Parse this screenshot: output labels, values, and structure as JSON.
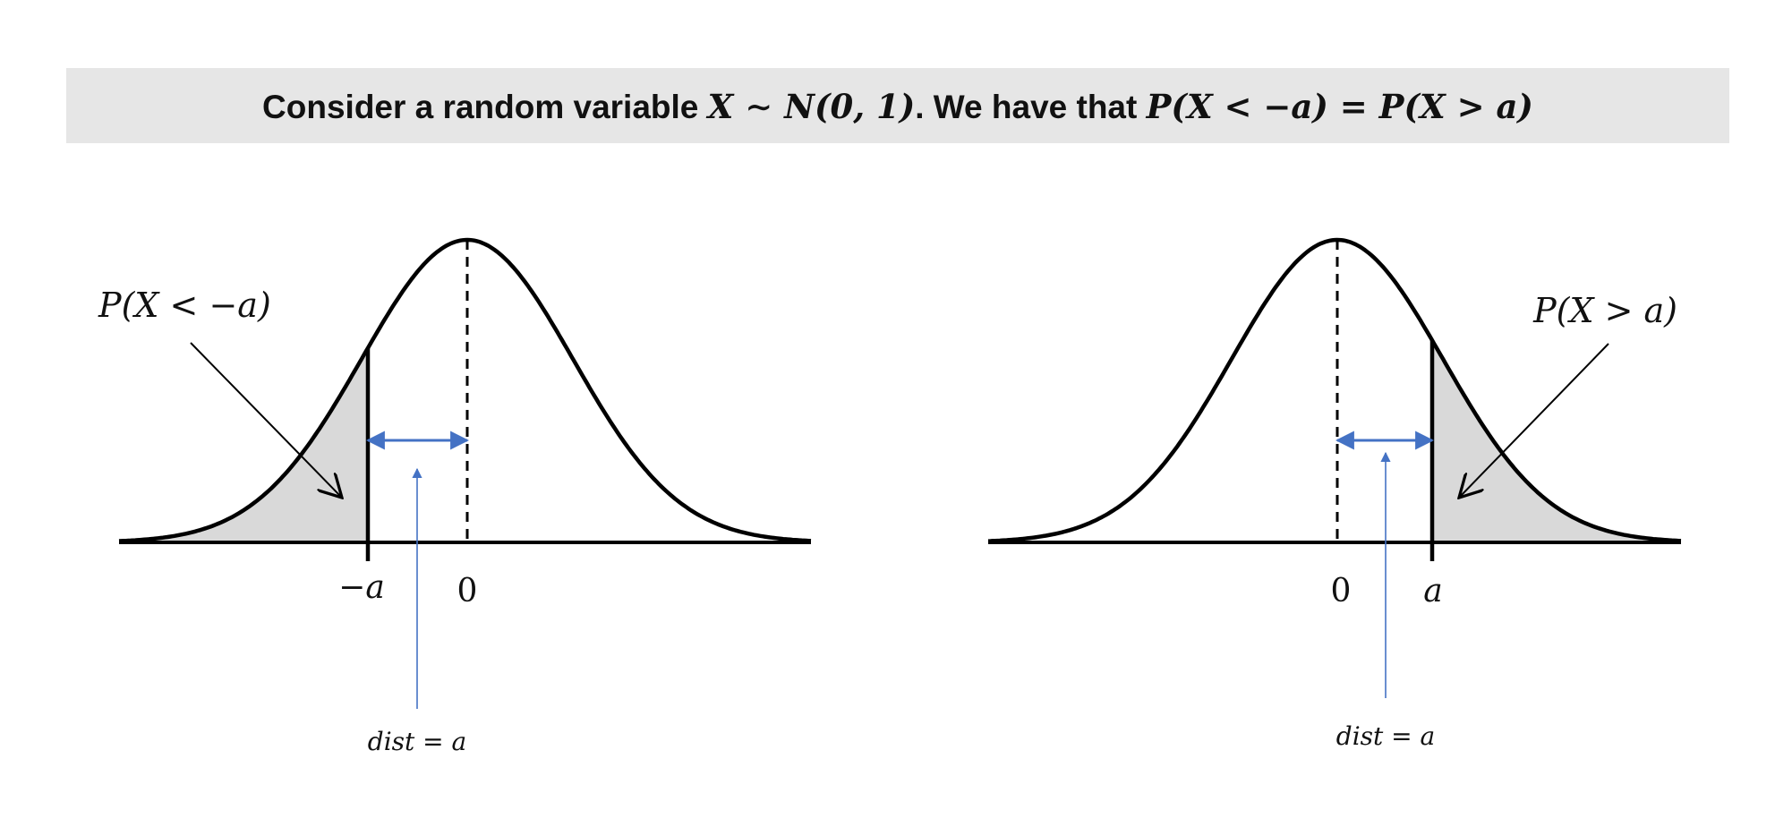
{
  "banner": {
    "prefix": "Consider a random variable ",
    "expr1": "X ∼ N(0, 1)",
    "middle": ". We have that ",
    "expr2": "P(X < −a) = P(X > a)"
  },
  "left_panel": {
    "area_label": "P(X < −a)",
    "tick_neg_a": "−a",
    "tick_zero": "0",
    "dist_label": "dist = a"
  },
  "right_panel": {
    "area_label": "P(X > a)",
    "tick_zero": "0",
    "tick_a": "a",
    "dist_label": "dist = a"
  },
  "colors": {
    "banner_bg": "#e6e6e6",
    "shade": "#d9d9d9",
    "curve": "#000000",
    "accent": "#4472c4"
  }
}
